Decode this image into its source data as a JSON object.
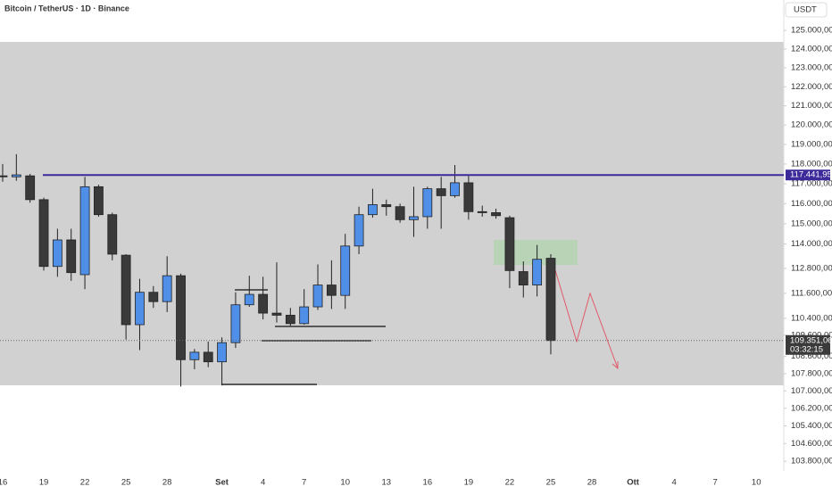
{
  "header": {
    "title": "Bitcoin / TetherUS · 1D · Binance",
    "currency": "USDT"
  },
  "chart_data": {
    "type": "candlestick",
    "log_scale": true,
    "grid": false,
    "up_color": "#4f8fe8",
    "down_color": "#3a3a3a",
    "categories": [
      "16",
      null,
      null,
      "19",
      null,
      null,
      "22",
      null,
      null,
      "25",
      null,
      null,
      "28",
      null,
      null,
      null,
      "Set",
      null,
      null,
      "4",
      null,
      null,
      "7",
      null,
      null,
      "10",
      null,
      null,
      "13",
      null,
      null,
      "16",
      null,
      null,
      "19",
      null,
      null,
      "22",
      null,
      null,
      "25",
      null,
      null,
      "28",
      null,
      null,
      "Ott",
      null,
      null,
      "4",
      null,
      null,
      "7",
      null,
      null,
      "10"
    ],
    "open": [
      117400,
      117350,
      117400,
      116200,
      112900,
      114200,
      112500,
      116850,
      115450,
      113450,
      110100,
      111650,
      111200,
      112450,
      108450,
      108800,
      108350,
      109250,
      111050,
      111550,
      110650,
      110550,
      110150,
      110950,
      112000,
      111500,
      113900,
      115450,
      115950,
      115850,
      115200,
      115350,
      116750,
      116400,
      117050,
      115600,
      115550,
      115300,
      112650,
      112000,
      113300,
      null,
      null,
      null,
      null,
      null,
      null,
      null,
      null,
      null,
      null,
      null,
      null,
      null,
      null,
      null
    ],
    "high": [
      118000,
      118500,
      117500,
      116300,
      114750,
      114750,
      117350,
      116950,
      115550,
      113500,
      112300,
      111950,
      113400,
      112550,
      108950,
      109300,
      109500,
      111650,
      112450,
      112400,
      113100,
      110900,
      111800,
      113000,
      113200,
      114500,
      115850,
      116750,
      116200,
      116000,
      116850,
      116850,
      117350,
      117950,
      117400,
      115900,
      115750,
      115400,
      113150,
      113950,
      113500,
      null,
      null,
      null,
      null,
      null,
      null,
      null,
      null,
      null,
      null,
      null,
      null,
      null,
      null,
      null
    ],
    "low": [
      117100,
      117150,
      116050,
      112700,
      112400,
      112200,
      111800,
      115350,
      113200,
      109400,
      108900,
      110900,
      110700,
      107200,
      108000,
      108100,
      107250,
      109000,
      110950,
      110350,
      110200,
      110050,
      110100,
      110800,
      110850,
      110850,
      113500,
      115300,
      115400,
      115050,
      114350,
      114750,
      114750,
      116300,
      115200,
      115350,
      115250,
      111850,
      111400,
      111450,
      108700,
      null,
      null,
      null,
      null,
      null,
      null,
      null,
      null,
      null,
      null,
      null,
      null,
      null,
      null,
      null
    ],
    "close": [
      117350,
      117450,
      116200,
      112900,
      114200,
      112600,
      116850,
      115450,
      113500,
      110100,
      111650,
      111200,
      112450,
      108450,
      108800,
      108350,
      109250,
      111050,
      111550,
      110650,
      110550,
      110150,
      110950,
      112000,
      111500,
      113900,
      115450,
      115950,
      115850,
      115200,
      115350,
      116750,
      116400,
      117050,
      115600,
      115550,
      115400,
      112700,
      112000,
      113250,
      109351.06,
      null,
      null,
      null,
      null,
      null,
      null,
      null,
      null,
      null,
      null,
      null,
      null,
      null,
      null,
      null
    ],
    "ylim": [
      103370,
      126650
    ],
    "yticks": [
      {
        "value": 125000,
        "label": "125.000,00"
      },
      {
        "value": 124000,
        "label": "124.000,00"
      },
      {
        "value": 123000,
        "label": "123.000,00"
      },
      {
        "value": 122000,
        "label": "122.000,00"
      },
      {
        "value": 121000,
        "label": "121.000,00"
      },
      {
        "value": 120000,
        "label": "120.000,00"
      },
      {
        "value": 119000,
        "label": "119.000,00"
      },
      {
        "value": 118000,
        "label": "118.000,00"
      },
      {
        "value": 117000,
        "label": "117.000,00"
      },
      {
        "value": 116000,
        "label": "116.000,00"
      },
      {
        "value": 115000,
        "label": "115.000,00"
      },
      {
        "value": 114000,
        "label": "114.000,00"
      },
      {
        "value": 112800,
        "label": "112.800,00"
      },
      {
        "value": 111600,
        "label": "111.600,00"
      },
      {
        "value": 110400,
        "label": "110.400,00"
      },
      {
        "value": 109600,
        "label": "109.600,00"
      },
      {
        "value": 108600,
        "label": "108.600,00"
      },
      {
        "value": 107800,
        "label": "107.800,00"
      },
      {
        "value": 107000,
        "label": "107.000,00"
      },
      {
        "value": 106200,
        "label": "106.200,00"
      },
      {
        "value": 105400,
        "label": "105.400,00"
      },
      {
        "value": 104600,
        "label": "104.600,00"
      },
      {
        "value": 103800,
        "label": "103.800,00"
      }
    ],
    "level": {
      "value": 117441.95,
      "label": "117.441,95",
      "color": "#3d2a9a"
    },
    "last_price": {
      "value": 109351.06,
      "label": "109.351,06",
      "countdown": "03:32:15"
    }
  }
}
